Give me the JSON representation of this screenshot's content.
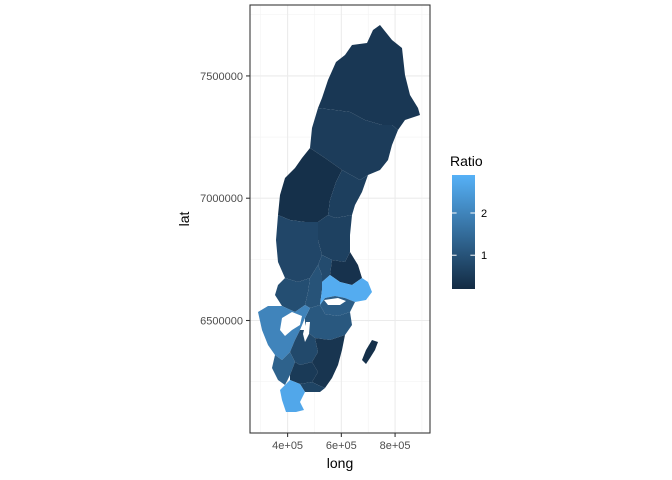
{
  "chart_data": {
    "type": "choropleth-map",
    "title": "",
    "xlabel": "long",
    "ylabel": "lat",
    "xlim": [
      260000,
      930000
    ],
    "ylim": [
      6040000,
      7790000
    ],
    "x_ticks": [
      {
        "value": 400000,
        "label": "4e+05"
      },
      {
        "value": 600000,
        "label": "6e+05"
      },
      {
        "value": 800000,
        "label": "8e+05"
      }
    ],
    "y_ticks": [
      {
        "value": 6500000,
        "label": "6500000"
      },
      {
        "value": 7000000,
        "label": "7000000"
      },
      {
        "value": 7500000,
        "label": "7500000"
      }
    ],
    "grid": true,
    "legend": {
      "title": "Ratio",
      "placement": "right",
      "breaks": [
        {
          "value": 1,
          "label": "1"
        },
        {
          "value": 2,
          "label": "2"
        }
      ],
      "range": [
        0.2,
        2.9
      ],
      "colors": {
        "low": "#132b43",
        "high": "#56b1f7"
      }
    },
    "regions": [
      {
        "id": "norrbotten",
        "ratio": 0.45
      },
      {
        "id": "vasterbotten",
        "ratio": 0.55
      },
      {
        "id": "jamtland",
        "ratio": 0.3
      },
      {
        "id": "vasternorrland",
        "ratio": 0.6
      },
      {
        "id": "gavleborg",
        "ratio": 0.65
      },
      {
        "id": "dalarna",
        "ratio": 0.75
      },
      {
        "id": "varmland",
        "ratio": 0.9
      },
      {
        "id": "orebro",
        "ratio": 1.0
      },
      {
        "id": "vastmanland",
        "ratio": 0.85
      },
      {
        "id": "uppsala",
        "ratio": 0.35
      },
      {
        "id": "stockholm",
        "ratio": 2.8
      },
      {
        "id": "sodermanland",
        "ratio": 1.2
      },
      {
        "id": "ostergotland",
        "ratio": 1.1
      },
      {
        "id": "vastra-gotaland",
        "ratio": 2.0
      },
      {
        "id": "halland",
        "ratio": 1.3
      },
      {
        "id": "jonkoping",
        "ratio": 0.8
      },
      {
        "id": "kronoberg",
        "ratio": 0.5
      },
      {
        "id": "kalmar",
        "ratio": 0.4
      },
      {
        "id": "gotland",
        "ratio": 0.3
      },
      {
        "id": "blekinge",
        "ratio": 0.7
      },
      {
        "id": "skane",
        "ratio": 2.7
      }
    ]
  }
}
